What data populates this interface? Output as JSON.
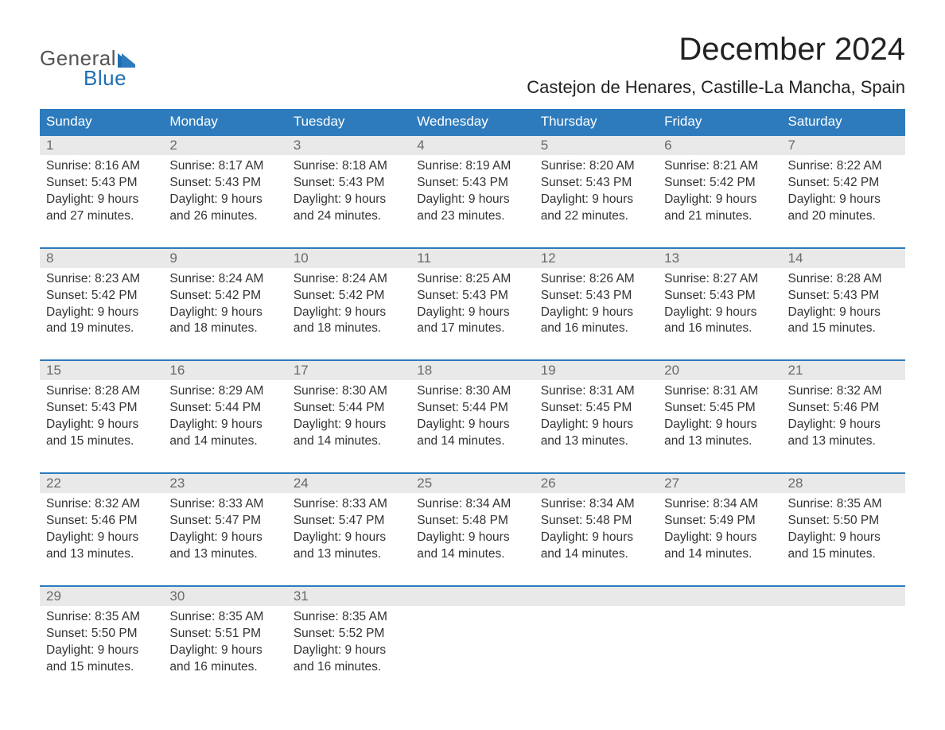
{
  "logo": {
    "text_general": "General",
    "text_blue": "Blue",
    "icon_color": "#1f6fb2"
  },
  "title": "December 2024",
  "location": "Castejon de Henares, Castille-La Mancha, Spain",
  "colors": {
    "header_bg": "#2d7bbd",
    "header_text": "#ffffff",
    "daynum_bg": "#e9e9e9",
    "daynum_text": "#6a6a6a",
    "week_border": "#2d7bbd",
    "body_text": "#333333",
    "title_text": "#222222"
  },
  "fonts": {
    "title_size_pt": 30,
    "location_size_pt": 17,
    "weekday_size_pt": 13,
    "daynum_size_pt": 13,
    "info_size_pt": 12
  },
  "weekdays": [
    "Sunday",
    "Monday",
    "Tuesday",
    "Wednesday",
    "Thursday",
    "Friday",
    "Saturday"
  ],
  "weeks": [
    [
      {
        "n": "1",
        "sunrise": "Sunrise: 8:16 AM",
        "sunset": "Sunset: 5:43 PM",
        "d1": "Daylight: 9 hours",
        "d2": "and 27 minutes."
      },
      {
        "n": "2",
        "sunrise": "Sunrise: 8:17 AM",
        "sunset": "Sunset: 5:43 PM",
        "d1": "Daylight: 9 hours",
        "d2": "and 26 minutes."
      },
      {
        "n": "3",
        "sunrise": "Sunrise: 8:18 AM",
        "sunset": "Sunset: 5:43 PM",
        "d1": "Daylight: 9 hours",
        "d2": "and 24 minutes."
      },
      {
        "n": "4",
        "sunrise": "Sunrise: 8:19 AM",
        "sunset": "Sunset: 5:43 PM",
        "d1": "Daylight: 9 hours",
        "d2": "and 23 minutes."
      },
      {
        "n": "5",
        "sunrise": "Sunrise: 8:20 AM",
        "sunset": "Sunset: 5:43 PM",
        "d1": "Daylight: 9 hours",
        "d2": "and 22 minutes."
      },
      {
        "n": "6",
        "sunrise": "Sunrise: 8:21 AM",
        "sunset": "Sunset: 5:42 PM",
        "d1": "Daylight: 9 hours",
        "d2": "and 21 minutes."
      },
      {
        "n": "7",
        "sunrise": "Sunrise: 8:22 AM",
        "sunset": "Sunset: 5:42 PM",
        "d1": "Daylight: 9 hours",
        "d2": "and 20 minutes."
      }
    ],
    [
      {
        "n": "8",
        "sunrise": "Sunrise: 8:23 AM",
        "sunset": "Sunset: 5:42 PM",
        "d1": "Daylight: 9 hours",
        "d2": "and 19 minutes."
      },
      {
        "n": "9",
        "sunrise": "Sunrise: 8:24 AM",
        "sunset": "Sunset: 5:42 PM",
        "d1": "Daylight: 9 hours",
        "d2": "and 18 minutes."
      },
      {
        "n": "10",
        "sunrise": "Sunrise: 8:24 AM",
        "sunset": "Sunset: 5:42 PM",
        "d1": "Daylight: 9 hours",
        "d2": "and 18 minutes."
      },
      {
        "n": "11",
        "sunrise": "Sunrise: 8:25 AM",
        "sunset": "Sunset: 5:43 PM",
        "d1": "Daylight: 9 hours",
        "d2": "and 17 minutes."
      },
      {
        "n": "12",
        "sunrise": "Sunrise: 8:26 AM",
        "sunset": "Sunset: 5:43 PM",
        "d1": "Daylight: 9 hours",
        "d2": "and 16 minutes."
      },
      {
        "n": "13",
        "sunrise": "Sunrise: 8:27 AM",
        "sunset": "Sunset: 5:43 PM",
        "d1": "Daylight: 9 hours",
        "d2": "and 16 minutes."
      },
      {
        "n": "14",
        "sunrise": "Sunrise: 8:28 AM",
        "sunset": "Sunset: 5:43 PM",
        "d1": "Daylight: 9 hours",
        "d2": "and 15 minutes."
      }
    ],
    [
      {
        "n": "15",
        "sunrise": "Sunrise: 8:28 AM",
        "sunset": "Sunset: 5:43 PM",
        "d1": "Daylight: 9 hours",
        "d2": "and 15 minutes."
      },
      {
        "n": "16",
        "sunrise": "Sunrise: 8:29 AM",
        "sunset": "Sunset: 5:44 PM",
        "d1": "Daylight: 9 hours",
        "d2": "and 14 minutes."
      },
      {
        "n": "17",
        "sunrise": "Sunrise: 8:30 AM",
        "sunset": "Sunset: 5:44 PM",
        "d1": "Daylight: 9 hours",
        "d2": "and 14 minutes."
      },
      {
        "n": "18",
        "sunrise": "Sunrise: 8:30 AM",
        "sunset": "Sunset: 5:44 PM",
        "d1": "Daylight: 9 hours",
        "d2": "and 14 minutes."
      },
      {
        "n": "19",
        "sunrise": "Sunrise: 8:31 AM",
        "sunset": "Sunset: 5:45 PM",
        "d1": "Daylight: 9 hours",
        "d2": "and 13 minutes."
      },
      {
        "n": "20",
        "sunrise": "Sunrise: 8:31 AM",
        "sunset": "Sunset: 5:45 PM",
        "d1": "Daylight: 9 hours",
        "d2": "and 13 minutes."
      },
      {
        "n": "21",
        "sunrise": "Sunrise: 8:32 AM",
        "sunset": "Sunset: 5:46 PM",
        "d1": "Daylight: 9 hours",
        "d2": "and 13 minutes."
      }
    ],
    [
      {
        "n": "22",
        "sunrise": "Sunrise: 8:32 AM",
        "sunset": "Sunset: 5:46 PM",
        "d1": "Daylight: 9 hours",
        "d2": "and 13 minutes."
      },
      {
        "n": "23",
        "sunrise": "Sunrise: 8:33 AM",
        "sunset": "Sunset: 5:47 PM",
        "d1": "Daylight: 9 hours",
        "d2": "and 13 minutes."
      },
      {
        "n": "24",
        "sunrise": "Sunrise: 8:33 AM",
        "sunset": "Sunset: 5:47 PM",
        "d1": "Daylight: 9 hours",
        "d2": "and 13 minutes."
      },
      {
        "n": "25",
        "sunrise": "Sunrise: 8:34 AM",
        "sunset": "Sunset: 5:48 PM",
        "d1": "Daylight: 9 hours",
        "d2": "and 14 minutes."
      },
      {
        "n": "26",
        "sunrise": "Sunrise: 8:34 AM",
        "sunset": "Sunset: 5:48 PM",
        "d1": "Daylight: 9 hours",
        "d2": "and 14 minutes."
      },
      {
        "n": "27",
        "sunrise": "Sunrise: 8:34 AM",
        "sunset": "Sunset: 5:49 PM",
        "d1": "Daylight: 9 hours",
        "d2": "and 14 minutes."
      },
      {
        "n": "28",
        "sunrise": "Sunrise: 8:35 AM",
        "sunset": "Sunset: 5:50 PM",
        "d1": "Daylight: 9 hours",
        "d2": "and 15 minutes."
      }
    ],
    [
      {
        "n": "29",
        "sunrise": "Sunrise: 8:35 AM",
        "sunset": "Sunset: 5:50 PM",
        "d1": "Daylight: 9 hours",
        "d2": "and 15 minutes."
      },
      {
        "n": "30",
        "sunrise": "Sunrise: 8:35 AM",
        "sunset": "Sunset: 5:51 PM",
        "d1": "Daylight: 9 hours",
        "d2": "and 16 minutes."
      },
      {
        "n": "31",
        "sunrise": "Sunrise: 8:35 AM",
        "sunset": "Sunset: 5:52 PM",
        "d1": "Daylight: 9 hours",
        "d2": "and 16 minutes."
      },
      {
        "n": "",
        "empty": true
      },
      {
        "n": "",
        "empty": true
      },
      {
        "n": "",
        "empty": true
      },
      {
        "n": "",
        "empty": true
      }
    ]
  ]
}
